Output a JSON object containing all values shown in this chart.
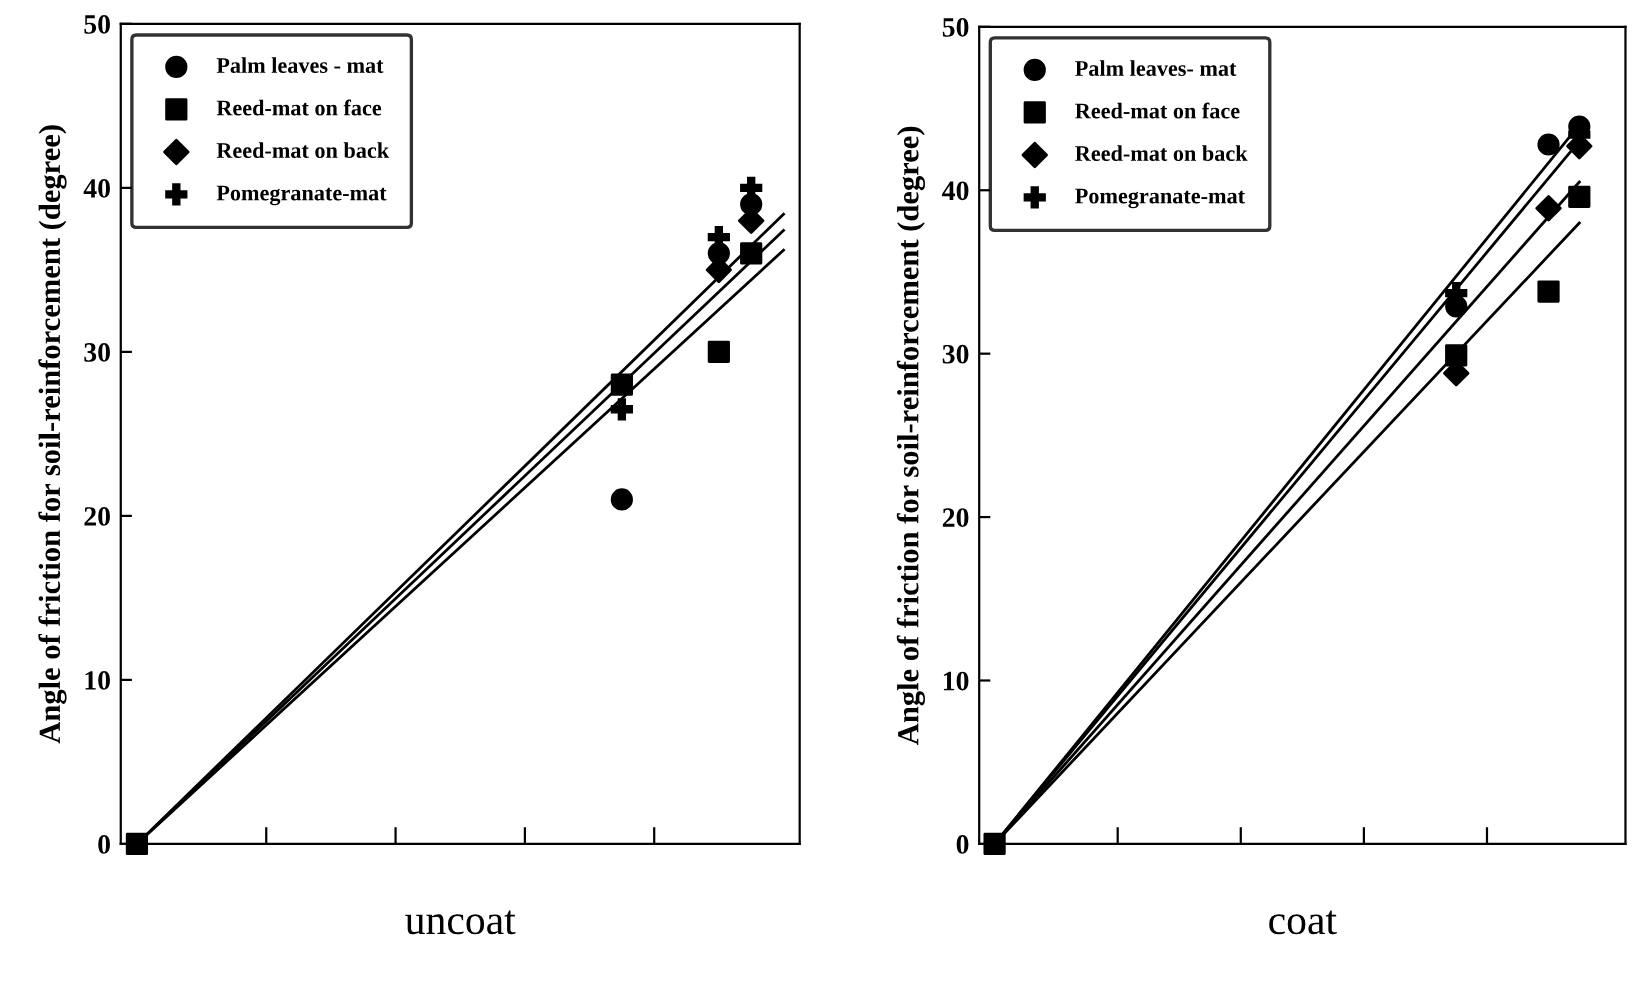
{
  "chart_data": [
    {
      "type": "scatter",
      "xlabel": "uncoat",
      "ylabel": "Angle of friction for soil-reinforcement (degree)",
      "categories": [
        null,
        null,
        null,
        null,
        null,
        null,
        null,
        null,
        null,
        null,
        null,
        null,
        null,
        null,
        null,
        null,
        null,
        null,
        null,
        null,
        null
      ],
      "ylim": [
        0,
        50
      ],
      "yticks": [
        0,
        10,
        20,
        30,
        40,
        50
      ],
      "tick_labels": "y",
      "grid": false,
      "legend": "top left",
      "series": [
        {
          "name": "Palm leaves - mat",
          "color": "#000000",
          "marker": "circle",
          "values": [
            null,
            null,
            null,
            null,
            null,
            null,
            null,
            null,
            null,
            null,
            null,
            null,
            null,
            null,
            null,
            21,
            null,
            null,
            36,
            39,
            null
          ]
        },
        {
          "name": "Reed-mat on face",
          "color": "#000000",
          "marker": "square",
          "values": [
            0,
            null,
            null,
            null,
            null,
            null,
            null,
            null,
            null,
            null,
            null,
            null,
            null,
            null,
            null,
            28,
            null,
            null,
            30,
            36,
            null
          ]
        },
        {
          "name": "Reed-mat on back",
          "color": "#000000",
          "marker": "diamond",
          "values": [
            null,
            null,
            null,
            null,
            null,
            null,
            null,
            null,
            null,
            null,
            null,
            null,
            null,
            null,
            null,
            null,
            null,
            null,
            35,
            38,
            null
          ]
        },
        {
          "name": "Pomegranate-mat",
          "color": "#000000",
          "marker": "cross",
          "values": [
            null,
            null,
            null,
            null,
            null,
            null,
            null,
            null,
            null,
            null,
            null,
            null,
            null,
            null,
            null,
            26.5,
            null,
            null,
            37,
            40,
            null
          ]
        },
        {
          "type": "line",
          "color": "#000000",
          "marker": "none",
          "values": [
            0,
            null,
            null,
            null,
            null,
            null,
            null,
            null,
            null,
            null,
            null,
            null,
            null,
            null,
            null,
            null,
            null,
            null,
            null,
            null,
            38.4
          ]
        },
        {
          "type": "line",
          "color": "#000000",
          "marker": "none",
          "values": [
            0,
            null,
            null,
            null,
            null,
            null,
            null,
            null,
            null,
            null,
            null,
            null,
            null,
            null,
            null,
            null,
            null,
            null,
            null,
            null,
            37.4
          ]
        },
        {
          "type": "line",
          "color": "#000000",
          "marker": "none",
          "values": [
            0,
            null,
            null,
            null,
            null,
            null,
            null,
            null,
            null,
            null,
            null,
            null,
            null,
            null,
            null,
            null,
            null,
            null,
            null,
            null,
            36.2
          ]
        }
      ]
    },
    {
      "type": "scatter",
      "xlabel": "coat",
      "ylabel": "Angle of friction for soil-reinforcement (degree)",
      "categories": [
        null,
        null,
        null,
        null,
        null,
        null,
        null,
        null,
        null,
        null,
        null,
        null,
        null,
        null,
        null,
        null,
        null,
        null,
        null,
        null,
        null
      ],
      "ylim": [
        0,
        50
      ],
      "yticks": [
        0,
        10,
        20,
        30,
        40,
        50
      ],
      "tick_labels": "y",
      "grid": false,
      "legend": "top left",
      "series": [
        {
          "name": "Palm leaves- mat",
          "color": "#000000",
          "marker": "circle",
          "values": [
            null,
            null,
            null,
            null,
            null,
            null,
            null,
            null,
            null,
            null,
            null,
            null,
            null,
            null,
            null,
            32.9,
            null,
            null,
            42.8,
            43.9,
            null
          ]
        },
        {
          "name": "Reed-mat on face",
          "color": "#000000",
          "marker": "square",
          "values": [
            0,
            null,
            null,
            null,
            null,
            null,
            null,
            null,
            null,
            null,
            null,
            null,
            null,
            null,
            null,
            29.9,
            null,
            null,
            33.8,
            39.6,
            null
          ]
        },
        {
          "name": "Reed-mat on back",
          "color": "#000000",
          "marker": "diamond",
          "values": [
            null,
            null,
            null,
            null,
            null,
            null,
            null,
            null,
            null,
            null,
            null,
            null,
            null,
            null,
            null,
            28.8,
            null,
            null,
            38.9,
            42.7,
            null
          ]
        },
        {
          "name": "Pomegranate-mat",
          "color": "#000000",
          "marker": "cross",
          "values": [
            null,
            null,
            null,
            null,
            null,
            null,
            null,
            null,
            null,
            null,
            null,
            null,
            null,
            null,
            null,
            33.7,
            null,
            null,
            null,
            43.4,
            null
          ]
        },
        {
          "type": "line",
          "color": "#000000",
          "marker": "none",
          "values": [
            0,
            null,
            null,
            null,
            null,
            null,
            null,
            null,
            null,
            null,
            null,
            null,
            null,
            null,
            null,
            null,
            null,
            null,
            null,
            44,
            null
          ]
        },
        {
          "type": "line",
          "color": "#000000",
          "marker": "none",
          "values": [
            0,
            null,
            null,
            null,
            null,
            null,
            null,
            null,
            null,
            null,
            null,
            null,
            null,
            null,
            null,
            null,
            null,
            null,
            null,
            43,
            null
          ]
        },
        {
          "type": "line",
          "color": "#000000",
          "marker": "none",
          "values": [
            0,
            null,
            null,
            null,
            null,
            null,
            null,
            null,
            null,
            null,
            null,
            null,
            null,
            null,
            null,
            null,
            null,
            null,
            null,
            40.5,
            null
          ]
        },
        {
          "type": "line",
          "color": "#000000",
          "marker": "none",
          "values": [
            0,
            null,
            null,
            null,
            null,
            null,
            null,
            null,
            null,
            null,
            null,
            null,
            null,
            null,
            null,
            null,
            null,
            null,
            null,
            38,
            null
          ]
        }
      ]
    }
  ]
}
